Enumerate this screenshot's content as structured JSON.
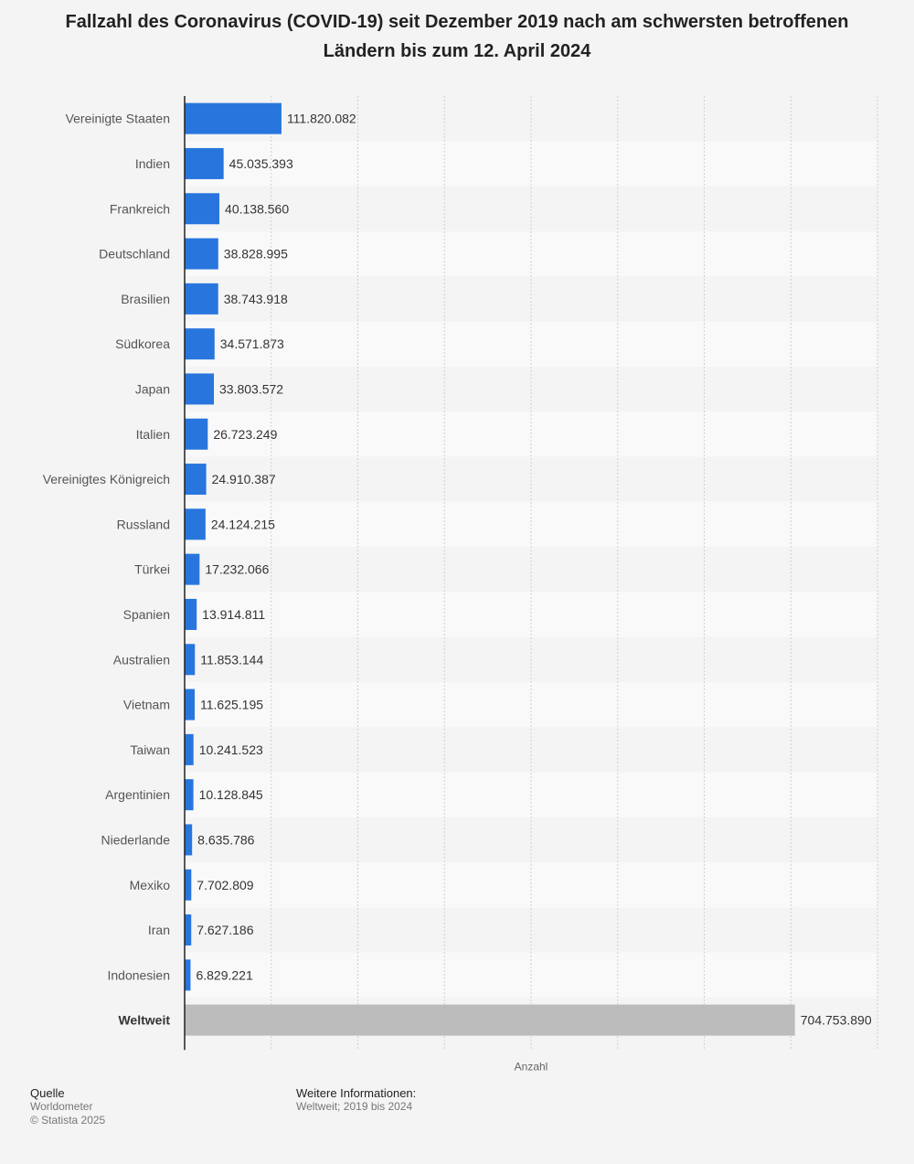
{
  "chart_data": {
    "type": "bar",
    "orientation": "horizontal",
    "title": "Fallzahl des Coronavirus (COVID-19) seit Dezember 2019 nach am schwersten betroffenen Ländern bis zum 12. April 2024",
    "xlabel": "Anzahl",
    "ylabel": "",
    "xlim": [
      0,
      800000000
    ],
    "grid": true,
    "categories": [
      "Vereinigte Staaten",
      "Indien",
      "Frankreich",
      "Deutschland",
      "Brasilien",
      "Südkorea",
      "Japan",
      "Italien",
      "Vereinigtes Königreich",
      "Russland",
      "Türkei",
      "Spanien",
      "Australien",
      "Vietnam",
      "Taiwan",
      "Argentinien",
      "Niederlande",
      "Mexiko",
      "Iran",
      "Indonesien",
      "Weltweit"
    ],
    "values": [
      111820082,
      45035393,
      40138560,
      38828995,
      38743918,
      34571873,
      33803572,
      26723249,
      24910387,
      24124215,
      17232066,
      13914811,
      11853144,
      11625195,
      10241523,
      10128845,
      8635786,
      7702809,
      7627186,
      6829221,
      704753890
    ],
    "value_labels": [
      "111.820.082",
      "45.035.393",
      "40.138.560",
      "38.828.995",
      "38.743.918",
      "34.571.873",
      "33.803.572",
      "26.723.249",
      "24.910.387",
      "24.124.215",
      "17.232.066",
      "13.914.811",
      "11.853.144",
      "11.625.195",
      "10.241.523",
      "10.128.845",
      "8.635.786",
      "7.702.809",
      "7.627.186",
      "6.829.221",
      "704.753.890"
    ],
    "highlight_category": "Weltweit",
    "colors": {
      "bar": "#2876dd",
      "highlight_bar": "#bcbcbc",
      "row_stripe": "#f9f9f9",
      "background": "#f4f4f4",
      "grid": "#cfcfcf",
      "axis": "#222222"
    }
  },
  "footer": {
    "source_heading": "Quelle",
    "source_name": "Worldometer",
    "copyright": "© Statista 2025",
    "info_heading": "Weitere Informationen:",
    "info_text": "Weltweit; 2019 bis 2024"
  }
}
